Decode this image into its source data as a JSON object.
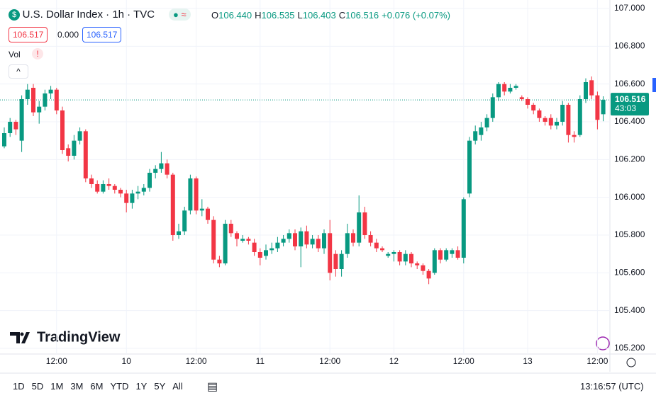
{
  "chart_data": {
    "type": "candlestick",
    "title": "U.S. Dollar Index · 1h · TVC",
    "ohlc": [
      {
        "label": "O",
        "value": "106.440"
      },
      {
        "label": "H",
        "value": "106.535"
      },
      {
        "label": "L",
        "value": "106.403"
      },
      {
        "label": "C",
        "value": "106.516"
      }
    ],
    "change": "+0.076 (+0.07%)",
    "bid": "106.517",
    "spread": "0.000",
    "ask": "106.517",
    "volume_label": "Vol",
    "up_color": "#089981",
    "down_color": "#f23645",
    "categories": [
      null,
      null,
      null,
      null,
      null,
      null,
      null,
      null,
      null,
      "12:00",
      null,
      null,
      null,
      null,
      null,
      null,
      null,
      null,
      null,
      null,
      null,
      "10",
      null,
      null,
      null,
      null,
      null,
      null,
      null,
      null,
      null,
      null,
      null,
      "12:00",
      null,
      null,
      null,
      null,
      null,
      null,
      null,
      null,
      null,
      null,
      "11",
      null,
      null,
      null,
      null,
      null,
      null,
      null,
      null,
      null,
      null,
      null,
      "12:00",
      null,
      null,
      null,
      null,
      null,
      null,
      null,
      null,
      null,
      null,
      "12",
      null,
      null,
      null,
      null,
      null,
      null,
      null,
      null,
      null,
      null,
      null,
      "12:00",
      null,
      null,
      null,
      null,
      null,
      null,
      null,
      null,
      null,
      null,
      "13",
      null,
      null,
      null,
      null,
      null,
      null,
      null,
      null,
      null,
      null,
      null,
      "12:00",
      null
    ],
    "open": [
      106.27,
      106.34,
      106.4,
      106.3,
      106.52,
      106.58,
      106.45,
      106.48,
      106.55,
      106.57,
      106.46,
      106.26,
      106.22,
      106.3,
      106.35,
      106.1,
      106.07,
      106.03,
      106.07,
      106.06,
      106.04,
      106.02,
      105.97,
      106.02,
      106.03,
      106.05,
      106.13,
      106.15,
      106.18,
      106.12,
      105.8,
      105.82,
      105.93,
      106.1,
      105.93,
      105.94,
      105.88,
      105.67,
      105.65,
      105.86,
      105.81,
      105.77,
      105.78,
      105.76,
      105.71,
      105.69,
      105.72,
      105.73,
      105.76,
      105.78,
      105.81,
      105.74,
      105.82,
      105.75,
      105.78,
      105.73,
      105.81,
      105.7,
      105.62,
      105.7,
      105.81,
      105.76,
      105.92,
      105.8,
      105.76,
      105.73,
      105.69,
      105.7,
      105.71,
      105.66,
      105.7,
      105.65,
      105.64,
      105.61,
      105.6,
      105.72,
      105.67,
      105.7,
      105.72,
      105.68,
      106.02,
      106.3,
      106.33,
      106.37,
      106.42,
      106.53,
      106.6,
      106.56,
      106.58,
      106.53,
      106.52,
      106.49,
      106.46,
      106.42,
      106.42,
      106.38,
      106.4,
      106.49,
      106.33,
      106.33,
      106.52,
      106.62,
      106.54,
      106.44
    ],
    "high": [
      106.37,
      106.42,
      106.41,
      106.54,
      106.6,
      106.6,
      106.51,
      106.57,
      106.59,
      106.58,
      106.48,
      106.28,
      106.33,
      106.37,
      106.36,
      106.12,
      106.09,
      106.09,
      106.1,
      106.07,
      106.05,
      106.04,
      106.04,
      106.06,
      106.07,
      106.15,
      106.17,
      106.24,
      106.2,
      106.13,
      105.86,
      105.95,
      106.12,
      106.11,
      105.99,
      105.95,
      105.9,
      105.69,
      105.88,
      105.88,
      105.82,
      105.8,
      105.79,
      105.78,
      105.73,
      105.75,
      105.76,
      105.79,
      105.8,
      105.83,
      105.83,
      105.84,
      105.85,
      105.8,
      105.8,
      105.83,
      105.88,
      105.72,
      105.72,
      105.86,
      105.83,
      106.01,
      105.95,
      105.82,
      105.78,
      105.74,
      105.71,
      105.72,
      105.72,
      105.72,
      105.71,
      105.66,
      105.65,
      105.62,
      105.73,
      105.73,
      105.73,
      105.73,
      105.74,
      106.0,
      106.32,
      106.38,
      106.4,
      106.44,
      106.55,
      106.61,
      106.61,
      106.6,
      106.6,
      106.54,
      106.53,
      106.5,
      106.47,
      106.43,
      106.44,
      106.42,
      106.51,
      106.5,
      106.35,
      106.54,
      106.63,
      106.64,
      106.56,
      106.535
    ],
    "low": [
      106.26,
      106.32,
      106.33,
      106.24,
      106.49,
      106.43,
      106.39,
      106.46,
      106.52,
      106.44,
      106.23,
      106.19,
      106.2,
      106.28,
      106.08,
      106.05,
      106.02,
      106.02,
      106.04,
      106.02,
      106.0,
      105.92,
      105.94,
      105.99,
      106.01,
      106.03,
      106.1,
      106.13,
      106.1,
      105.77,
      105.78,
      105.8,
      105.91,
      105.91,
      105.9,
      105.86,
      105.65,
      105.63,
      105.64,
      105.79,
      105.74,
      105.76,
      105.75,
      105.69,
      105.64,
      105.67,
      105.7,
      105.71,
      105.74,
      105.76,
      105.72,
      105.63,
      105.73,
      105.73,
      105.71,
      105.7,
      105.56,
      105.58,
      105.58,
      105.68,
      105.74,
      105.74,
      105.78,
      105.74,
      105.71,
      105.71,
      105.68,
      105.66,
      105.64,
      105.64,
      105.63,
      105.62,
      105.59,
      105.54,
      105.59,
      105.65,
      105.66,
      105.68,
      105.67,
      105.65,
      106.0,
      106.28,
      106.3,
      106.35,
      106.4,
      106.51,
      106.54,
      106.55,
      106.57,
      106.51,
      106.47,
      106.44,
      106.4,
      106.38,
      106.36,
      106.36,
      106.38,
      106.29,
      106.29,
      106.32,
      106.5,
      106.52,
      106.36,
      106.403
    ],
    "close": [
      106.34,
      106.4,
      106.36,
      106.52,
      106.57,
      106.45,
      106.48,
      106.55,
      106.57,
      106.46,
      106.25,
      106.22,
      106.3,
      106.35,
      106.1,
      106.07,
      106.03,
      106.07,
      106.06,
      106.04,
      106.02,
      105.97,
      106.02,
      106.03,
      106.05,
      106.13,
      106.15,
      106.18,
      106.12,
      105.8,
      105.82,
      105.93,
      106.1,
      105.93,
      105.94,
      105.88,
      105.67,
      105.65,
      105.86,
      105.81,
      105.78,
      105.78,
      105.77,
      105.71,
      105.68,
      105.72,
      105.73,
      105.76,
      105.78,
      105.81,
      105.74,
      105.82,
      105.75,
      105.78,
      105.73,
      105.81,
      105.6,
      105.62,
      105.7,
      105.81,
      105.76,
      105.92,
      105.8,
      105.76,
      105.73,
      105.72,
      105.7,
      105.71,
      105.66,
      105.7,
      105.65,
      105.64,
      105.61,
      105.57,
      105.72,
      105.67,
      105.72,
      105.72,
      105.68,
      105.99,
      106.3,
      106.35,
      106.37,
      106.42,
      106.53,
      106.6,
      106.56,
      106.58,
      106.59,
      106.52,
      106.49,
      106.46,
      106.42,
      106.4,
      106.38,
      106.4,
      106.49,
      106.33,
      106.32,
      106.52,
      106.61,
      106.54,
      106.41,
      106.516
    ],
    "ylim": [
      105.17,
      107.045
    ],
    "yticks": [
      {
        "value": 107,
        "label": "107.000"
      },
      {
        "value": 106.8,
        "label": "106.800"
      },
      {
        "value": 106.6,
        "label": "106.600"
      },
      {
        "value": 106.4,
        "label": "106.400"
      },
      {
        "value": 106.2,
        "label": "106.200"
      },
      {
        "value": 106,
        "label": "106.000"
      },
      {
        "value": 105.8,
        "label": "105.800"
      },
      {
        "value": 105.6,
        "label": "105.600"
      },
      {
        "value": 105.4,
        "label": "105.400"
      },
      {
        "value": 105.2,
        "label": "105.200"
      }
    ],
    "grid": true,
    "last_price": {
      "value": 106.516,
      "label": "106.516",
      "countdown": "43:03"
    },
    "logo": "TradingView",
    "ranges": [
      "1D",
      "5D",
      "1M",
      "3M",
      "6M",
      "YTD",
      "1Y",
      "5Y",
      "All"
    ],
    "clock": "13:16:57 (UTC)"
  }
}
